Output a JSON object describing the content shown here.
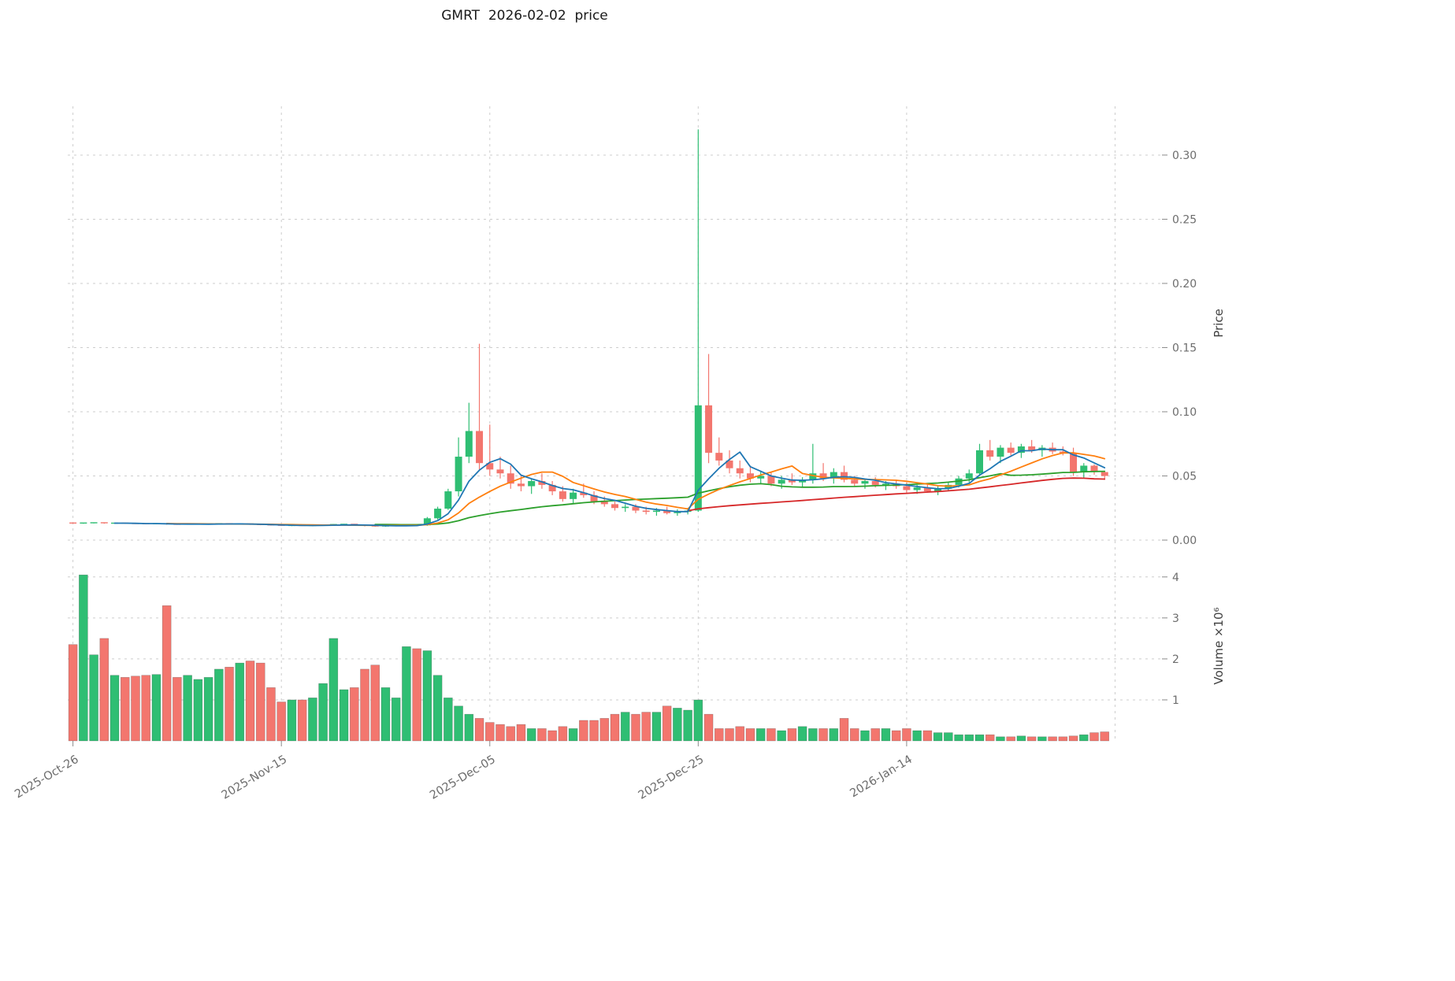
{
  "chart_data": {
    "type": "candlestick+volume",
    "title": "GMRT  2026-02-02  price",
    "xlim": [
      -0.5,
      104.5
    ],
    "x_ticks": [
      {
        "index": 0,
        "label": "2025-Oct-26"
      },
      {
        "index": 20,
        "label": "2025-Nov-15"
      },
      {
        "index": 40,
        "label": "2025-Dec-05"
      },
      {
        "index": 60,
        "label": "2025-Dec-25"
      },
      {
        "index": 80,
        "label": "2026-Jan-14"
      }
    ],
    "x_grid_indices": [
      0,
      20,
      40,
      60,
      80,
      100
    ],
    "price_axis": {
      "label": "Price",
      "ticks": [
        0.0,
        0.05,
        0.1,
        0.15,
        0.2,
        0.25,
        0.3
      ],
      "ylim": [
        0,
        0.338
      ]
    },
    "volume_axis": {
      "label": "Volume",
      "scale_note": "×10⁶",
      "ticks": [
        1,
        2,
        3,
        4
      ],
      "ylim": [
        0,
        4.63
      ]
    },
    "mav": {
      "windows": [
        5,
        10,
        30,
        60
      ],
      "colors": [
        "#1f77b4",
        "#ff7f0e",
        "#2ca02c",
        "#d62728"
      ]
    },
    "colors": {
      "up": "#2fbe73",
      "down": "#f3766e"
    },
    "grid": true,
    "legend": "none",
    "candles": [
      [
        0.0133,
        0.0136,
        0.0128,
        0.0129
      ],
      [
        0.0129,
        0.0135,
        0.0127,
        0.0133
      ],
      [
        0.0133,
        0.0137,
        0.013,
        0.0135
      ],
      [
        0.0135,
        0.0137,
        0.0128,
        0.013
      ],
      [
        0.013,
        0.0134,
        0.0128,
        0.0132
      ],
      [
        0.0132,
        0.0134,
        0.0127,
        0.0129
      ],
      [
        0.0129,
        0.0132,
        0.0126,
        0.0128
      ],
      [
        0.0128,
        0.0131,
        0.0124,
        0.0126
      ],
      [
        0.0126,
        0.013,
        0.0124,
        0.0128
      ],
      [
        0.0128,
        0.013,
        0.012,
        0.0123
      ],
      [
        0.0123,
        0.0126,
        0.0119,
        0.0121
      ],
      [
        0.0121,
        0.0126,
        0.012,
        0.0124
      ],
      [
        0.0124,
        0.0128,
        0.0122,
        0.0126
      ],
      [
        0.0126,
        0.0129,
        0.0123,
        0.0127
      ],
      [
        0.0127,
        0.013,
        0.0124,
        0.0128
      ],
      [
        0.0128,
        0.013,
        0.0122,
        0.0124
      ],
      [
        0.0124,
        0.0128,
        0.0121,
        0.0126
      ],
      [
        0.0126,
        0.0128,
        0.0119,
        0.0121
      ],
      [
        0.0121,
        0.0124,
        0.0116,
        0.0118
      ],
      [
        0.0118,
        0.0121,
        0.0113,
        0.0115
      ],
      [
        0.0115,
        0.0118,
        0.011,
        0.0112
      ],
      [
        0.0112,
        0.0116,
        0.0109,
        0.0114
      ],
      [
        0.0114,
        0.0117,
        0.011,
        0.0112
      ],
      [
        0.0112,
        0.0116,
        0.0109,
        0.0114
      ],
      [
        0.0114,
        0.012,
        0.0111,
        0.0118
      ],
      [
        0.0118,
        0.0124,
        0.0114,
        0.0121
      ],
      [
        0.0121,
        0.0126,
        0.0117,
        0.0123
      ],
      [
        0.0123,
        0.0126,
        0.0112,
        0.0115
      ],
      [
        0.0115,
        0.0118,
        0.0107,
        0.011
      ],
      [
        0.011,
        0.0113,
        0.0104,
        0.0107
      ],
      [
        0.0107,
        0.0112,
        0.0104,
        0.011
      ],
      [
        0.011,
        0.0115,
        0.0107,
        0.0113
      ],
      [
        0.0113,
        0.012,
        0.011,
        0.0118
      ],
      [
        0.0118,
        0.0123,
        0.0112,
        0.0115
      ],
      [
        0.0115,
        0.018,
        0.0112,
        0.017
      ],
      [
        0.017,
        0.026,
        0.016,
        0.0245
      ],
      [
        0.0245,
        0.04,
        0.0235,
        0.038
      ],
      [
        0.038,
        0.08,
        0.034,
        0.065
      ],
      [
        0.065,
        0.107,
        0.06,
        0.085
      ],
      [
        0.085,
        0.153,
        0.055,
        0.06
      ],
      [
        0.06,
        0.09,
        0.05,
        0.055
      ],
      [
        0.055,
        0.065,
        0.048,
        0.052
      ],
      [
        0.052,
        0.058,
        0.04,
        0.044
      ],
      [
        0.044,
        0.05,
        0.038,
        0.042
      ],
      [
        0.042,
        0.048,
        0.036,
        0.046
      ],
      [
        0.046,
        0.052,
        0.04,
        0.043
      ],
      [
        0.043,
        0.046,
        0.035,
        0.038
      ],
      [
        0.038,
        0.042,
        0.03,
        0.032
      ],
      [
        0.032,
        0.04,
        0.028,
        0.037
      ],
      [
        0.037,
        0.044,
        0.033,
        0.035
      ],
      [
        0.035,
        0.038,
        0.028,
        0.03
      ],
      [
        0.03,
        0.034,
        0.026,
        0.028
      ],
      [
        0.028,
        0.03,
        0.023,
        0.025
      ],
      [
        0.025,
        0.028,
        0.022,
        0.026
      ],
      [
        0.026,
        0.028,
        0.021,
        0.023
      ],
      [
        0.023,
        0.026,
        0.02,
        0.022
      ],
      [
        0.022,
        0.025,
        0.019,
        0.023
      ],
      [
        0.023,
        0.026,
        0.02,
        0.021
      ],
      [
        0.021,
        0.024,
        0.019,
        0.022
      ],
      [
        0.022,
        0.025,
        0.02,
        0.023
      ],
      [
        0.023,
        0.32,
        0.022,
        0.105
      ],
      [
        0.105,
        0.145,
        0.06,
        0.068
      ],
      [
        0.068,
        0.08,
        0.058,
        0.062
      ],
      [
        0.062,
        0.07,
        0.052,
        0.056
      ],
      [
        0.056,
        0.062,
        0.048,
        0.052
      ],
      [
        0.052,
        0.058,
        0.045,
        0.048
      ],
      [
        0.048,
        0.054,
        0.044,
        0.05
      ],
      [
        0.05,
        0.053,
        0.042,
        0.044
      ],
      [
        0.044,
        0.05,
        0.04,
        0.047
      ],
      [
        0.047,
        0.052,
        0.043,
        0.045
      ],
      [
        0.045,
        0.049,
        0.041,
        0.047
      ],
      [
        0.047,
        0.075,
        0.044,
        0.052
      ],
      [
        0.052,
        0.06,
        0.046,
        0.048
      ],
      [
        0.048,
        0.056,
        0.044,
        0.053
      ],
      [
        0.053,
        0.058,
        0.045,
        0.047
      ],
      [
        0.047,
        0.05,
        0.042,
        0.044
      ],
      [
        0.044,
        0.048,
        0.04,
        0.046
      ],
      [
        0.046,
        0.049,
        0.041,
        0.043
      ],
      [
        0.043,
        0.046,
        0.039,
        0.044
      ],
      [
        0.044,
        0.047,
        0.04,
        0.042
      ],
      [
        0.042,
        0.045,
        0.037,
        0.039
      ],
      [
        0.039,
        0.043,
        0.036,
        0.041
      ],
      [
        0.041,
        0.044,
        0.037,
        0.038
      ],
      [
        0.038,
        0.042,
        0.035,
        0.04
      ],
      [
        0.04,
        0.045,
        0.038,
        0.043
      ],
      [
        0.043,
        0.05,
        0.041,
        0.048
      ],
      [
        0.048,
        0.055,
        0.045,
        0.052
      ],
      [
        0.052,
        0.075,
        0.05,
        0.07
      ],
      [
        0.07,
        0.078,
        0.062,
        0.065
      ],
      [
        0.065,
        0.074,
        0.06,
        0.072
      ],
      [
        0.072,
        0.076,
        0.066,
        0.068
      ],
      [
        0.068,
        0.075,
        0.064,
        0.073
      ],
      [
        0.073,
        0.078,
        0.068,
        0.07
      ],
      [
        0.07,
        0.074,
        0.065,
        0.072
      ],
      [
        0.072,
        0.076,
        0.067,
        0.069
      ],
      [
        0.069,
        0.073,
        0.066,
        0.068
      ],
      [
        0.068,
        0.072,
        0.05,
        0.053
      ],
      [
        0.053,
        0.06,
        0.048,
        0.058
      ],
      [
        0.058,
        0.059,
        0.051,
        0.053
      ],
      [
        0.053,
        0.054,
        0.047,
        0.05
      ]
    ],
    "volumes_millions": [
      2.35,
      4.05,
      2.1,
      2.5,
      1.6,
      1.55,
      1.58,
      1.6,
      1.62,
      3.3,
      1.55,
      1.6,
      1.5,
      1.55,
      1.75,
      1.8,
      1.9,
      1.95,
      1.9,
      1.3,
      0.95,
      1.0,
      1.0,
      1.05,
      1.4,
      2.5,
      1.25,
      1.3,
      1.75,
      1.85,
      1.3,
      1.05,
      2.3,
      2.25,
      2.2,
      1.6,
      1.05,
      0.85,
      0.65,
      0.55,
      0.45,
      0.4,
      0.35,
      0.4,
      0.3,
      0.3,
      0.25,
      0.35,
      0.3,
      0.5,
      0.5,
      0.55,
      0.65,
      0.7,
      0.65,
      0.7,
      0.7,
      0.85,
      0.8,
      0.75,
      1.0,
      0.65,
      0.3,
      0.3,
      0.35,
      0.3,
      0.3,
      0.3,
      0.25,
      0.3,
      0.35,
      0.3,
      0.3,
      0.3,
      0.55,
      0.3,
      0.25,
      0.3,
      0.3,
      0.25,
      0.3,
      0.25,
      0.25,
      0.2,
      0.2,
      0.15,
      0.15,
      0.15,
      0.15,
      0.1,
      0.1,
      0.12,
      0.1,
      0.1,
      0.1,
      0.1,
      0.12,
      0.15,
      0.2,
      0.22
    ]
  }
}
